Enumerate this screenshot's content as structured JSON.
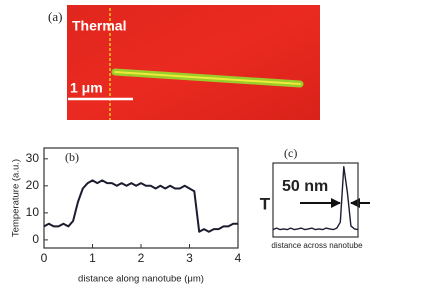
{
  "image": {
    "panel_label": "(a)",
    "title": "Thermal",
    "scale_bar": "1 μm"
  },
  "chart_data": [
    {
      "type": "line",
      "panel_label": "(b)",
      "xlabel": "distance along nanotube (μm)",
      "ylabel": "Temperature (a.u.)",
      "color": "#1c1c30",
      "x": [
        0,
        0.1,
        0.2,
        0.3,
        0.4,
        0.5,
        0.6,
        0.7,
        0.8,
        0.9,
        1,
        1.1,
        1.2,
        1.3,
        1.4,
        1.5,
        1.6,
        1.7,
        1.8,
        1.9,
        2,
        2.1,
        2.2,
        2.3,
        2.4,
        2.5,
        2.6,
        2.7,
        2.8,
        2.9,
        3,
        3.1,
        3.2,
        3.3,
        3.4,
        3.5,
        3.6,
        3.7,
        3.8,
        3.9,
        4
      ],
      "values": [
        5,
        6,
        5,
        5,
        6,
        5,
        7,
        14,
        19,
        21,
        22,
        21,
        22,
        21,
        21,
        20,
        21,
        20,
        21,
        20,
        21,
        20,
        20,
        19,
        20,
        19,
        20,
        19,
        19,
        20,
        19,
        18,
        3,
        4,
        3,
        4,
        4,
        5,
        5,
        6,
        6
      ],
      "xlim": [
        0,
        4
      ],
      "xticks": [
        0,
        1,
        2,
        3,
        4
      ],
      "ylim": [
        -3,
        34
      ],
      "yticks": [
        0,
        10,
        20,
        30
      ]
    },
    {
      "type": "line",
      "panel_label": "(c)",
      "xlabel": "distance across nanotube",
      "ylabel": "T",
      "annotation": "50 nm",
      "color": "#1c1c30",
      "x": [
        0,
        1,
        2,
        3,
        4,
        5,
        6,
        7,
        8,
        9,
        10,
        11,
        12,
        13,
        14,
        15,
        16,
        17,
        18,
        19,
        20,
        21,
        22,
        23,
        24
      ],
      "values": [
        1,
        1.2,
        1,
        1.1,
        1,
        1.2,
        1,
        1.1,
        1.2,
        1,
        1.1,
        1.2,
        1,
        1.1,
        1,
        1.2,
        1.1,
        1,
        1.2,
        2,
        9.5,
        6,
        1.5,
        1.1,
        1
      ],
      "xlim": [
        0,
        24
      ],
      "ylim": [
        0,
        10
      ]
    }
  ]
}
